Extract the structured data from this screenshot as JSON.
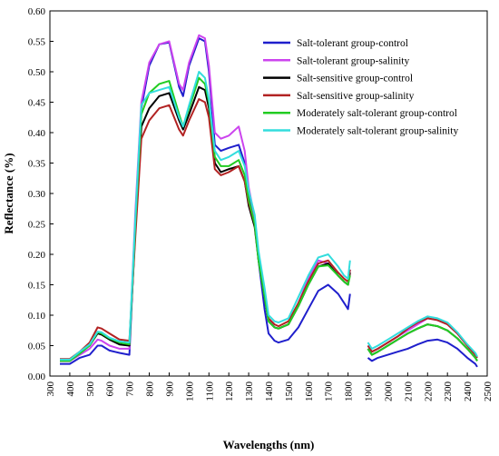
{
  "chart_data": {
    "type": "line",
    "xlabel": "Wavelengths (nm)",
    "ylabel": "Reflectance (%)",
    "xlim": [
      300,
      2500
    ],
    "ylim": [
      0,
      0.6
    ],
    "xticks": [
      300,
      400,
      500,
      600,
      700,
      800,
      900,
      1000,
      1100,
      1200,
      1300,
      1400,
      1500,
      1600,
      1700,
      1800,
      1900,
      2000,
      2100,
      2200,
      2300,
      2400,
      2500
    ],
    "yticks": [
      0,
      0.05,
      0.1,
      0.15,
      0.2,
      0.25,
      0.3,
      0.35,
      0.4,
      0.45,
      0.5,
      0.55,
      0.6
    ],
    "xtick_labels": [
      "300",
      "400",
      "500",
      "600",
      "700",
      "800",
      "900",
      "1000",
      "1100",
      "1200",
      "1300",
      "1400",
      "1500",
      "1600",
      "1700",
      "1800",
      "1900",
      "2000",
      "2100",
      "2200",
      "2300",
      "2400",
      "2500"
    ],
    "ytick_labels": [
      "0.00",
      "0.05",
      "0.10",
      "0.15",
      "0.20",
      "0.25",
      "0.30",
      "0.35",
      "0.40",
      "0.45",
      "0.50",
      "0.55",
      "0.60"
    ],
    "grid": false,
    "legend_placement": "top-right",
    "series": [
      {
        "name": "Salt-tolerant group-control",
        "color": "#1f1fcc",
        "segments": [
          {
            "x": [
              350,
              400,
              450,
              500,
              540,
              560,
              600,
              650,
              700,
              730,
              760,
              800,
              850,
              900,
              950,
              970,
              1000,
              1050,
              1080,
              1100,
              1130,
              1160,
              1200,
              1250,
              1280,
              1300,
              1330,
              1350,
              1380,
              1400,
              1430,
              1450,
              1500,
              1550,
              1600,
              1650,
              1700,
              1750,
              1780,
              1800,
              1810
            ],
            "y": [
              0.02,
              0.02,
              0.03,
              0.035,
              0.05,
              0.05,
              0.042,
              0.038,
              0.035,
              0.25,
              0.44,
              0.51,
              0.545,
              0.548,
              0.475,
              0.46,
              0.51,
              0.555,
              0.55,
              0.5,
              0.38,
              0.37,
              0.375,
              0.38,
              0.35,
              0.3,
              0.26,
              0.19,
              0.11,
              0.07,
              0.058,
              0.055,
              0.06,
              0.08,
              0.11,
              0.14,
              0.15,
              0.135,
              0.12,
              0.11,
              0.135
            ]
          },
          {
            "x": [
              1900,
              1920,
              1950,
              2000,
              2050,
              2100,
              2150,
              2200,
              2250,
              2300,
              2350,
              2400,
              2440,
              2450
            ],
            "y": [
              0.03,
              0.025,
              0.03,
              0.035,
              0.04,
              0.045,
              0.052,
              0.058,
              0.06,
              0.055,
              0.045,
              0.03,
              0.02,
              0.015
            ]
          }
        ]
      },
      {
        "name": "Salt-tolerant group-salinity",
        "color": "#cc44ee",
        "segments": [
          {
            "x": [
              350,
              400,
              450,
              500,
              540,
              560,
              600,
              650,
              700,
              730,
              760,
              800,
              850,
              900,
              950,
              970,
              1000,
              1050,
              1080,
              1100,
              1130,
              1160,
              1200,
              1250,
              1280,
              1300,
              1330,
              1350,
              1380,
              1400,
              1430,
              1450,
              1500,
              1550,
              1600,
              1650,
              1700,
              1750,
              1780,
              1800,
              1810
            ],
            "y": [
              0.025,
              0.025,
              0.035,
              0.045,
              0.06,
              0.058,
              0.05,
              0.045,
              0.045,
              0.27,
              0.45,
              0.515,
              0.545,
              0.55,
              0.48,
              0.47,
              0.515,
              0.56,
              0.555,
              0.51,
              0.4,
              0.39,
              0.395,
              0.41,
              0.37,
              0.31,
              0.26,
              0.2,
              0.14,
              0.095,
              0.08,
              0.078,
              0.085,
              0.12,
              0.16,
              0.19,
              0.185,
              0.165,
              0.155,
              0.15,
              0.175
            ]
          },
          {
            "x": [
              1900,
              1920,
              1950,
              2000,
              2050,
              2100,
              2150,
              2200,
              2250,
              2300,
              2350,
              2400,
              2440,
              2450
            ],
            "y": [
              0.05,
              0.04,
              0.045,
              0.055,
              0.065,
              0.075,
              0.085,
              0.095,
              0.092,
              0.085,
              0.07,
              0.05,
              0.035,
              0.03
            ]
          }
        ]
      },
      {
        "name": "Salt-sensitive group-control",
        "color": "#000000",
        "segments": [
          {
            "x": [
              350,
              400,
              450,
              500,
              540,
              560,
              600,
              650,
              700,
              730,
              760,
              800,
              850,
              900,
              950,
              970,
              1000,
              1050,
              1080,
              1100,
              1130,
              1160,
              1200,
              1250,
              1280,
              1300,
              1330,
              1350,
              1380,
              1400,
              1430,
              1450,
              1500,
              1550,
              1600,
              1650,
              1700,
              1750,
              1780,
              1800,
              1810
            ],
            "y": [
              0.025,
              0.025,
              0.038,
              0.05,
              0.07,
              0.068,
              0.06,
              0.052,
              0.05,
              0.24,
              0.41,
              0.44,
              0.46,
              0.465,
              0.42,
              0.405,
              0.43,
              0.475,
              0.47,
              0.44,
              0.35,
              0.335,
              0.34,
              0.345,
              0.32,
              0.28,
              0.245,
              0.19,
              0.13,
              0.09,
              0.08,
              0.078,
              0.085,
              0.115,
              0.15,
              0.18,
              0.185,
              0.165,
              0.155,
              0.15,
              0.17
            ]
          },
          {
            "x": [
              1900,
              1920,
              1950,
              2000,
              2050,
              2100,
              2150,
              2200,
              2250,
              2300,
              2350,
              2400,
              2440,
              2450
            ],
            "y": [
              0.045,
              0.035,
              0.04,
              0.05,
              0.06,
              0.07,
              0.078,
              0.085,
              0.082,
              0.075,
              0.062,
              0.045,
              0.03,
              0.025
            ]
          }
        ]
      },
      {
        "name": "Salt-sensitive group-salinity",
        "color": "#b22222",
        "segments": [
          {
            "x": [
              350,
              400,
              450,
              500,
              540,
              560,
              600,
              650,
              700,
              730,
              760,
              800,
              850,
              900,
              950,
              970,
              1000,
              1050,
              1080,
              1100,
              1130,
              1160,
              1200,
              1250,
              1280,
              1300,
              1330,
              1350,
              1380,
              1400,
              1430,
              1450,
              1500,
              1550,
              1600,
              1650,
              1700,
              1750,
              1780,
              1800,
              1810
            ],
            "y": [
              0.028,
              0.028,
              0.04,
              0.055,
              0.08,
              0.078,
              0.07,
              0.06,
              0.058,
              0.23,
              0.39,
              0.42,
              0.44,
              0.445,
              0.405,
              0.395,
              0.42,
              0.455,
              0.45,
              0.425,
              0.34,
              0.33,
              0.335,
              0.345,
              0.32,
              0.285,
              0.25,
              0.195,
              0.135,
              0.095,
              0.085,
              0.082,
              0.09,
              0.12,
              0.155,
              0.185,
              0.19,
              0.17,
              0.16,
              0.155,
              0.175
            ]
          },
          {
            "x": [
              1900,
              1920,
              1950,
              2000,
              2050,
              2100,
              2150,
              2200,
              2250,
              2300,
              2350,
              2400,
              2440,
              2450
            ],
            "y": [
              0.05,
              0.04,
              0.045,
              0.055,
              0.065,
              0.078,
              0.088,
              0.095,
              0.092,
              0.085,
              0.07,
              0.05,
              0.035,
              0.03
            ]
          }
        ]
      },
      {
        "name": "Moderately salt-tolerant group-control",
        "color": "#22cc22",
        "segments": [
          {
            "x": [
              350,
              400,
              450,
              500,
              540,
              560,
              600,
              650,
              700,
              730,
              760,
              800,
              850,
              900,
              950,
              970,
              1000,
              1050,
              1080,
              1100,
              1130,
              1160,
              1200,
              1250,
              1280,
              1300,
              1330,
              1350,
              1380,
              1400,
              1430,
              1450,
              1500,
              1550,
              1600,
              1650,
              1700,
              1750,
              1780,
              1800,
              1810
            ],
            "y": [
              0.025,
              0.025,
              0.037,
              0.05,
              0.072,
              0.07,
              0.062,
              0.055,
              0.052,
              0.25,
              0.43,
              0.465,
              0.48,
              0.485,
              0.43,
              0.41,
              0.44,
              0.49,
              0.48,
              0.45,
              0.36,
              0.345,
              0.345,
              0.355,
              0.33,
              0.29,
              0.25,
              0.19,
              0.13,
              0.09,
              0.08,
              0.078,
              0.085,
              0.115,
              0.15,
              0.18,
              0.182,
              0.165,
              0.155,
              0.15,
              0.165
            ]
          },
          {
            "x": [
              1900,
              1920,
              1950,
              2000,
              2050,
              2100,
              2150,
              2200,
              2250,
              2300,
              2350,
              2400,
              2440,
              2450
            ],
            "y": [
              0.045,
              0.035,
              0.04,
              0.05,
              0.06,
              0.07,
              0.078,
              0.085,
              0.082,
              0.075,
              0.062,
              0.045,
              0.03,
              0.025
            ]
          }
        ]
      },
      {
        "name": "Moderately salt-tolerant group-salinity",
        "color": "#33dddd",
        "segments": [
          {
            "x": [
              350,
              400,
              450,
              500,
              540,
              560,
              600,
              650,
              700,
              730,
              760,
              800,
              850,
              900,
              950,
              970,
              1000,
              1050,
              1080,
              1100,
              1130,
              1160,
              1200,
              1250,
              1280,
              1300,
              1330,
              1350,
              1380,
              1400,
              1430,
              1450,
              1500,
              1550,
              1600,
              1650,
              1700,
              1750,
              1780,
              1800,
              1810
            ],
            "y": [
              0.027,
              0.027,
              0.04,
              0.052,
              0.073,
              0.072,
              0.063,
              0.057,
              0.055,
              0.26,
              0.445,
              0.465,
              0.47,
              0.475,
              0.425,
              0.41,
              0.445,
              0.5,
              0.49,
              0.455,
              0.37,
              0.355,
              0.36,
              0.37,
              0.345,
              0.305,
              0.265,
              0.205,
              0.145,
              0.1,
              0.09,
              0.088,
              0.095,
              0.13,
              0.165,
              0.195,
              0.2,
              0.18,
              0.165,
              0.16,
              0.19
            ]
          },
          {
            "x": [
              1900,
              1920,
              1950,
              2000,
              2050,
              2100,
              2150,
              2200,
              2250,
              2300,
              2350,
              2400,
              2440,
              2450
            ],
            "y": [
              0.055,
              0.045,
              0.05,
              0.06,
              0.07,
              0.08,
              0.09,
              0.098,
              0.095,
              0.088,
              0.072,
              0.052,
              0.038,
              0.032
            ]
          }
        ]
      }
    ]
  }
}
